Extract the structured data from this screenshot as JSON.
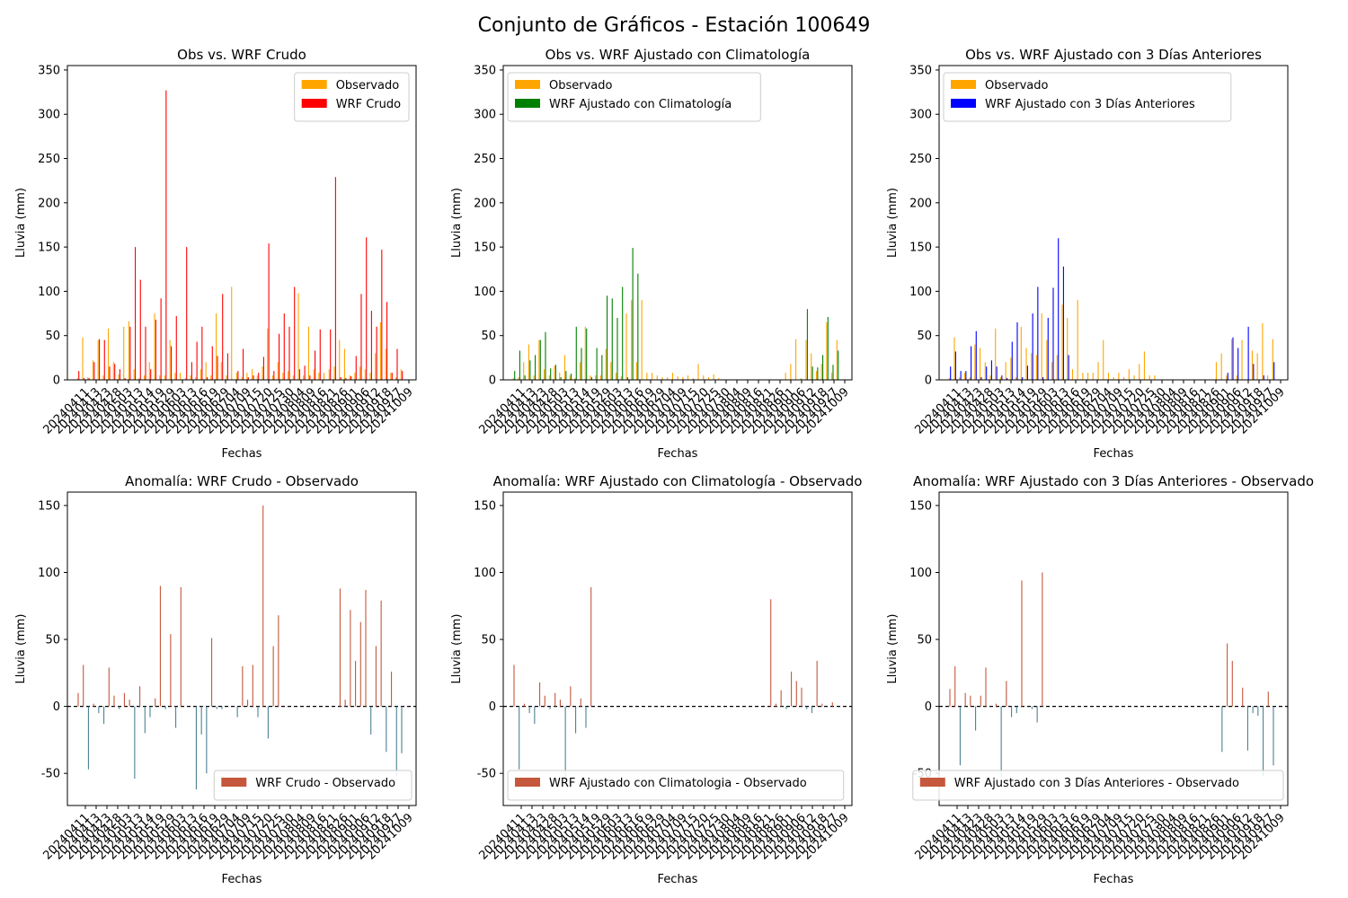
{
  "suptitle": "Conjunto de Gráficos - Estación 100649",
  "date_labels": [
    "20240411",
    "20240413",
    "20240423",
    "20240428",
    "20240503",
    "20240513",
    "20240514",
    "20240519",
    "20240529",
    "20240603",
    "20240613",
    "20240616",
    "20240619",
    "20240629",
    "20240704",
    "20240709",
    "20240715",
    "20240720",
    "20240725",
    "20240730",
    "20240804",
    "20240809",
    "20240816",
    "20240821",
    "20240826",
    "20240901",
    "20240906",
    "20240912",
    "20240918",
    "20240927",
    "20241009"
  ],
  "colors": {
    "observed": "#ffa500",
    "raw": "#ff0000",
    "clim": "#008000",
    "prev3": "#0000ff",
    "anom_pos": "#c5583c",
    "anom_neg": "#4c8294"
  },
  "chart_data": [
    {
      "type": "bar",
      "title": "Obs vs. WRF Crudo",
      "xlabel": "Fechas",
      "ylabel": "Lluvia (mm)",
      "ylim": [
        0,
        355
      ],
      "yticks": [
        "0",
        "50",
        "100",
        "150",
        "200",
        "250",
        "300",
        "350"
      ],
      "legend_position": "top-right",
      "series": [
        {
          "name": "Observado",
          "color": "#ffa500",
          "values": [
            2,
            48,
            3,
            22,
            45,
            5,
            58,
            20,
            6,
            60,
            66,
            12,
            2,
            5,
            20,
            75,
            5,
            5,
            45,
            8,
            8,
            2,
            5,
            3,
            12,
            20,
            5,
            75,
            20,
            5,
            105,
            8,
            3,
            8,
            12,
            5,
            15,
            58,
            5,
            20,
            8,
            10,
            5,
            98,
            5,
            60,
            12,
            8,
            8,
            12,
            15,
            45,
            35,
            5,
            8,
            15,
            12,
            8,
            30,
            65,
            35,
            8,
            3,
            12
          ]
        },
        {
          "name": "WRF Crudo",
          "color": "#ff0000",
          "values": [
            10,
            2,
            2,
            20,
            46,
            45,
            15,
            18,
            12,
            2,
            60,
            150,
            113,
            60,
            12,
            68,
            92,
            327,
            38,
            72,
            0,
            150,
            20,
            43,
            60,
            3,
            38,
            27,
            97,
            30,
            0,
            10,
            35,
            3,
            5,
            8,
            26,
            154,
            10,
            52,
            75,
            60,
            105,
            12,
            16,
            5,
            33,
            57,
            0,
            57,
            229,
            3,
            2,
            4,
            27,
            97,
            161,
            78,
            60,
            147,
            88,
            8,
            35,
            10
          ]
        }
      ]
    },
    {
      "type": "bar",
      "title": "Obs vs. WRF Ajustado con Climatología",
      "xlabel": "Fechas",
      "ylabel": "Lluvia (mm)",
      "ylim": [
        0,
        355
      ],
      "yticks": [
        "0",
        "50",
        "100",
        "150",
        "200",
        "250",
        "300",
        "350"
      ],
      "legend_position": "top-left",
      "series": [
        {
          "name": "Observado",
          "color": "#ffa500",
          "values": [
            2,
            3,
            20,
            40,
            5,
            45,
            12,
            5,
            16,
            8,
            28,
            5,
            2,
            20,
            60,
            5,
            5,
            5,
            35,
            20,
            8,
            4,
            75,
            90,
            20,
            90,
            8,
            8,
            5,
            3,
            3,
            8,
            4,
            3,
            5,
            2,
            18,
            5,
            3,
            6,
            2,
            0,
            0,
            0,
            0,
            0,
            0,
            0,
            0,
            0,
            0,
            0,
            0,
            8,
            18,
            46,
            2,
            45,
            30,
            10,
            18,
            65,
            8,
            45
          ]
        },
        {
          "name": "WRF Ajustado con Climatología",
          "color": "#008000",
          "values": [
            10,
            33,
            5,
            22,
            28,
            45,
            54,
            13,
            17,
            3,
            10,
            7,
            60,
            36,
            58,
            3,
            36,
            28,
            95,
            92,
            70,
            105,
            3,
            149,
            120,
            0,
            0,
            0,
            0,
            0,
            0,
            0,
            0,
            0,
            0,
            0,
            0,
            0,
            0,
            0,
            0,
            0,
            0,
            0,
            0,
            0,
            0,
            0,
            0,
            0,
            0,
            0,
            0,
            0,
            0,
            0,
            0,
            80,
            15,
            14,
            28,
            71,
            17,
            33
          ]
        }
      ]
    },
    {
      "type": "bar",
      "title": "Obs vs. WRF Ajustado con 3 Días Anteriores",
      "xlabel": "Fechas",
      "ylabel": "Lluvia (mm)",
      "ylim": [
        0,
        355
      ],
      "yticks": [
        "0",
        "50",
        "100",
        "150",
        "200",
        "250",
        "300",
        "350"
      ],
      "legend_position": "top-left",
      "series": [
        {
          "name": "Observado",
          "color": "#ffa500",
          "values": [
            2,
            48,
            3,
            8,
            3,
            40,
            36,
            20,
            5,
            58,
            3,
            20,
            25,
            3,
            60,
            36,
            30,
            28,
            75,
            45,
            20,
            28,
            85,
            70,
            12,
            90,
            8,
            8,
            8,
            20,
            45,
            8,
            3,
            8,
            3,
            12,
            5,
            18,
            32,
            5,
            5,
            0,
            0,
            0,
            0,
            0,
            0,
            0,
            0,
            0,
            0,
            0,
            20,
            30,
            5,
            46,
            5,
            45,
            0,
            33,
            30,
            64,
            5,
            46
          ]
        },
        {
          "name": "WRF Ajustado con 3 Días Anteriores",
          "color": "#0000ff",
          "values": [
            15,
            32,
            10,
            10,
            38,
            55,
            3,
            15,
            22,
            15,
            5,
            2,
            43,
            65,
            3,
            16,
            75,
            105,
            3,
            70,
            104,
            160,
            128,
            28,
            0,
            0,
            0,
            0,
            0,
            0,
            0,
            0,
            0,
            0,
            0,
            0,
            0,
            0,
            0,
            0,
            0,
            0,
            0,
            0,
            0,
            0,
            0,
            0,
            0,
            0,
            0,
            0,
            0,
            0,
            8,
            48,
            36,
            0,
            60,
            18,
            0,
            5,
            0,
            20
          ]
        }
      ]
    },
    {
      "type": "bar",
      "title": "Anomalía: WRF Crudo - Observado",
      "xlabel": "Fechas",
      "ylabel": "Lluvia (mm)",
      "ylim": [
        -74,
        160
      ],
      "yticks": [
        "-50",
        "0",
        "50",
        "100",
        "150"
      ],
      "legend_position": "bottom-right",
      "baseline": 0,
      "series": [
        {
          "name": "WRF Crudo - Observado",
          "values": [
            10,
            31,
            -47,
            2,
            -5,
            -13,
            29,
            8,
            -2,
            10,
            5,
            -54,
            15,
            -20,
            -8,
            6,
            90,
            -2,
            54,
            -16,
            89,
            0,
            0,
            -62,
            -21,
            -50,
            51,
            -2,
            -2,
            0,
            0,
            -8,
            30,
            5,
            31,
            -8,
            150,
            -24,
            45,
            68,
            0,
            0,
            0,
            0,
            0,
            0,
            0,
            0,
            0,
            0,
            0,
            88,
            5,
            72,
            34,
            63,
            87,
            -21,
            45,
            79,
            -34,
            26,
            -52,
            -35
          ]
        }
      ]
    },
    {
      "type": "bar",
      "title": "Anomalía: WRF Ajustado con Climatología - Observado",
      "xlabel": "Fechas",
      "ylabel": "Lluvia (mm)",
      "ylim": [
        -74,
        160
      ],
      "yticks": [
        "-50",
        "0",
        "50",
        "100",
        "150"
      ],
      "legend_position": "bottom-left",
      "baseline": 0,
      "series": [
        {
          "name": "WRF Ajustado con Climatologia - Observado",
          "values": [
            31,
            -47,
            2,
            -5,
            -13,
            18,
            8,
            -2,
            10,
            5,
            -54,
            15,
            -20,
            6,
            -16,
            89,
            0,
            0,
            0,
            0,
            0,
            0,
            0,
            0,
            0,
            0,
            0,
            0,
            0,
            0,
            0,
            0,
            0,
            0,
            0,
            0,
            0,
            0,
            0,
            0,
            0,
            0,
            0,
            0,
            0,
            0,
            0,
            0,
            0,
            0,
            80,
            2,
            12,
            -2,
            26,
            19,
            14,
            -2,
            -5,
            34,
            2,
            0,
            3,
            0
          ]
        }
      ]
    },
    {
      "type": "bar",
      "title": "Anomalía: WRF Ajustado con 3 Días Anteriores - Observado",
      "xlabel": "Fechas",
      "ylabel": "Lluvia (mm)",
      "ylim": [
        -74,
        160
      ],
      "yticks": [
        "-50",
        "0",
        "50",
        "100",
        "150"
      ],
      "legend_position": "bottom-right",
      "baseline": 0,
      "series": [
        {
          "name": "WRF Ajustado con 3 Días Anteriores - Observado",
          "values": [
            13,
            30,
            -44,
            10,
            8,
            -18,
            8,
            29,
            0,
            2,
            -53,
            19,
            -8,
            -5,
            94,
            0,
            -2,
            -12,
            100,
            0,
            0,
            0,
            0,
            0,
            0,
            0,
            0,
            0,
            0,
            0,
            0,
            0,
            0,
            0,
            0,
            0,
            0,
            0,
            0,
            0,
            0,
            0,
            0,
            0,
            0,
            0,
            0,
            0,
            0,
            0,
            0,
            0,
            0,
            -34,
            47,
            34,
            0,
            14,
            -33,
            -5,
            -7,
            -52,
            11,
            -44
          ]
        }
      ]
    }
  ]
}
